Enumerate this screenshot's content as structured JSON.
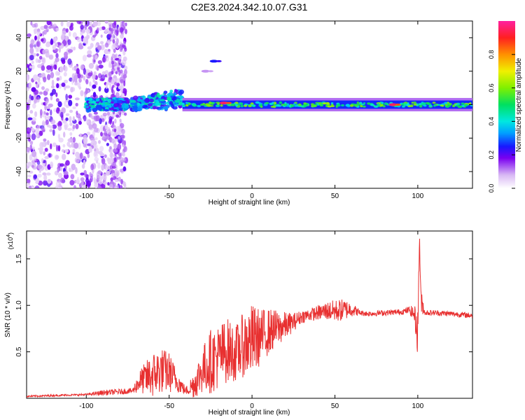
{
  "title": "C2E3.2024.342.10.07.G31",
  "chart_data": [
    {
      "type": "heatmap",
      "title": "C2E3.2024.342.10.07.G31",
      "xlabel": "Height of straight line (km)",
      "ylabel": "Frequency (Hz)",
      "xlim": [
        -136,
        133
      ],
      "ylim": [
        -50,
        50
      ],
      "xticks": [
        -100,
        -50,
        0,
        50,
        100
      ],
      "yticks": [
        -40,
        -20,
        0,
        20,
        40
      ],
      "colorbar": {
        "label": "Normalized spectral amplitude",
        "range": [
          0,
          1
        ],
        "ticks": [
          0.0,
          0.2,
          0.4,
          0.6,
          0.8
        ],
        "tick_labels": [
          "0.0",
          "0.2",
          "0.4",
          "0.6",
          "0.8"
        ]
      },
      "regions": [
        {
          "desc": "scattered noise",
          "x_range": [
            -136,
            -78
          ],
          "freq_range": [
            -50,
            50
          ],
          "amplitude": 0.1
        },
        {
          "desc": "dispersed band",
          "x_range": [
            -100,
            -42
          ],
          "freq_range": [
            -6,
            8
          ],
          "amplitude": 0.35
        },
        {
          "desc": "carrier line",
          "x_range": [
            -42,
            133
          ],
          "freq_range": [
            -3,
            3
          ],
          "amplitude": 0.6
        },
        {
          "desc": "peak",
          "x": -17,
          "freq": 1,
          "amplitude": 0.95
        },
        {
          "desc": "peak",
          "x": 85,
          "freq": 0,
          "amplitude": 0.95
        },
        {
          "desc": "isolated blob",
          "x": -23,
          "freq": 26,
          "amplitude": 0.25
        },
        {
          "desc": "isolated blob",
          "x": -28,
          "freq": 20,
          "amplitude": 0.1
        }
      ]
    },
    {
      "type": "line",
      "xlabel": "Height of straight line (km)",
      "ylabel": "SNR (10 * v/v)",
      "y_multiplier_label": "(x10",
      "y_multiplier_exp": "4",
      "xlim": [
        -136,
        133
      ],
      "ylim": [
        0,
        1.8
      ],
      "xticks": [
        -100,
        -50,
        0,
        50,
        100
      ],
      "yticks": [
        0.5,
        1.0,
        1.5
      ],
      "ytick_labels": [
        "0.5",
        "1.0",
        "1.5"
      ],
      "series": [
        {
          "name": "SNR",
          "color": "#e83030",
          "x": [
            -136,
            -120,
            -100,
            -90,
            -80,
            -72,
            -68,
            -60,
            -55,
            -50,
            -45,
            -40,
            -35,
            -30,
            -25,
            -20,
            -15,
            -10,
            -5,
            0,
            5,
            10,
            15,
            20,
            25,
            30,
            35,
            40,
            45,
            50,
            55,
            60,
            65,
            70,
            80,
            90,
            95,
            98,
            100,
            101,
            102,
            103,
            104,
            105,
            110,
            120,
            133
          ],
          "y": [
            0.02,
            0.03,
            0.04,
            0.06,
            0.07,
            0.08,
            0.18,
            0.25,
            0.3,
            0.28,
            0.18,
            0.08,
            0.15,
            0.3,
            0.4,
            0.45,
            0.52,
            0.48,
            0.58,
            0.62,
            0.66,
            0.72,
            0.75,
            0.78,
            0.82,
            0.88,
            0.9,
            0.92,
            0.94,
            0.94,
            0.95,
            0.96,
            0.92,
            0.91,
            0.92,
            0.93,
            0.95,
            0.9,
            0.7,
            1.75,
            1.0,
            1.0,
            0.93,
            0.92,
            0.92,
            0.91,
            0.89
          ],
          "noise": [
            0.01,
            0.01,
            0.01,
            0.03,
            0.03,
            0.03,
            0.12,
            0.25,
            0.25,
            0.22,
            0.12,
            0.04,
            0.15,
            0.25,
            0.35,
            0.35,
            0.35,
            0.3,
            0.35,
            0.4,
            0.3,
            0.25,
            0.2,
            0.15,
            0.1,
            0.07,
            0.07,
            0.08,
            0.1,
            0.12,
            0.12,
            0.08,
            0.03,
            0.03,
            0.03,
            0.03,
            0.04,
            0.1,
            0.25,
            0.1,
            0.15,
            0.1,
            0.03,
            0.03,
            0.03,
            0.03,
            0.03
          ]
        }
      ]
    }
  ]
}
